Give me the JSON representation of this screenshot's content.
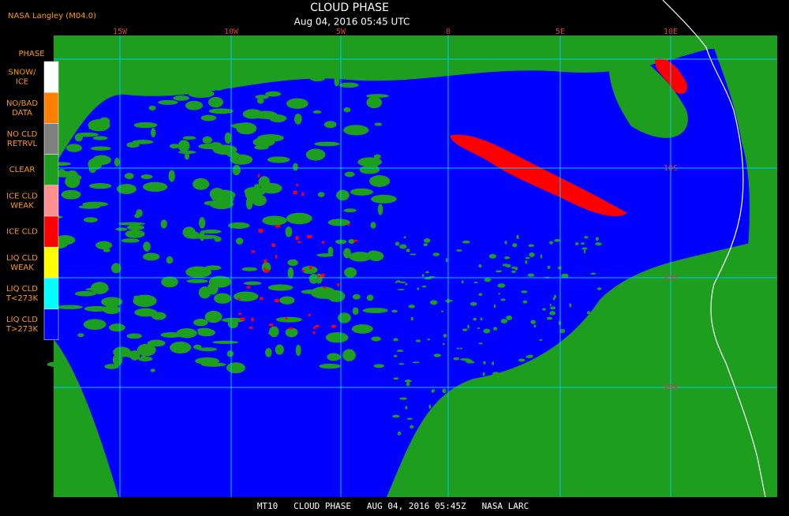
{
  "header": {
    "title": "CLOUD PHASE",
    "subtitle": "Aug 04, 2016 05:45 UTC",
    "credit": "NASA Langley (M04.0)"
  },
  "legend": {
    "title": "PHASE",
    "items": [
      {
        "lines": [
          "SNOW/",
          "ICE"
        ],
        "color": "#ffffff"
      },
      {
        "lines": [
          "NO/BAD",
          "DATA"
        ],
        "color": "#ff8000"
      },
      {
        "lines": [
          "NO CLD",
          "RETRVL"
        ],
        "color": "#808080"
      },
      {
        "lines": [
          "CLEAR"
        ],
        "color": "#1e9e1e"
      },
      {
        "lines": [
          "ICE CLD",
          "WEAK"
        ],
        "color": "#ff9090"
      },
      {
        "lines": [
          "ICE CLD"
        ],
        "color": "#ff0000"
      },
      {
        "lines": [
          "LIQ CLD",
          "WEAK"
        ],
        "color": "#ffff00"
      },
      {
        "lines": [
          "LIQ CLD",
          "T<273K"
        ],
        "color": "#00ffff"
      },
      {
        "lines": [
          "LIQ CLD",
          "T>273K"
        ],
        "color": "#0000ff"
      }
    ]
  },
  "map": {
    "lon_labels": [
      "15W",
      "10W",
      "5W",
      "0",
      "5E",
      "10E"
    ],
    "lat_labels": [
      "10S",
      "15S",
      "20S"
    ]
  },
  "footer": {
    "text": "MT10   CLOUD PHASE   AUG 04, 2016 05:45Z   NASA LARC"
  }
}
